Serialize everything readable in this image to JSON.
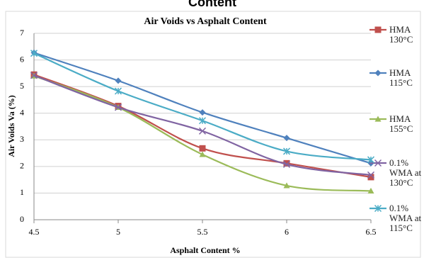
{
  "chart_data": {
    "type": "line",
    "heading": "Content",
    "title": "Air Voids vs Asphalt Content",
    "x_label": "Asphalt Content %",
    "y_label": "Air Voids Va (%)",
    "x": [
      4.5,
      5,
      5.5,
      6,
      6.5
    ],
    "xlim": [
      4.5,
      6.5
    ],
    "xticks": [
      4.5,
      5,
      5.5,
      6,
      6.5
    ],
    "ylim": [
      0,
      7
    ],
    "yticks": [
      0,
      1,
      2,
      3,
      4,
      5,
      6,
      7
    ],
    "grid": true,
    "legend": "right",
    "series": [
      {
        "name": "HMA 130°C",
        "color": "#c0504d",
        "marker": "square",
        "values": [
          5.45,
          4.27,
          2.68,
          2.12,
          1.6
        ]
      },
      {
        "name": "HMA 115°C",
        "color": "#4f81bd",
        "marker": "diamond",
        "values": [
          6.27,
          5.22,
          4.03,
          3.07,
          2.12
        ]
      },
      {
        "name": "HMA 155°C",
        "color": "#9bbb59",
        "marker": "triangle",
        "values": [
          5.4,
          4.22,
          2.45,
          1.28,
          1.08
        ]
      },
      {
        "name": "0.1% WMA at 130°C",
        "color": "#8064a2",
        "marker": "x",
        "values": [
          5.42,
          4.22,
          3.33,
          2.08,
          1.68
        ]
      },
      {
        "name": "0.1% WMA at 115°C",
        "color": "#4bacc6",
        "marker": "asterisk",
        "values": [
          6.25,
          4.83,
          3.72,
          2.57,
          2.25
        ]
      }
    ]
  }
}
